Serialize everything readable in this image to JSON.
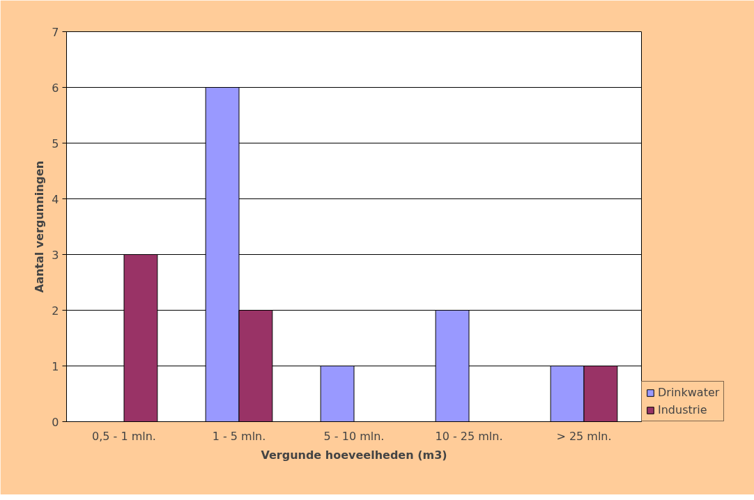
{
  "chart_data": {
    "type": "bar",
    "xlabel": "Vergunde hoeveelheden (m3)",
    "ylabel": "Aantal vergunningen",
    "categories": [
      "0,5 - 1 mln.",
      "1 - 5 mln.",
      "5 - 10 mln.",
      "10 - 25 mln.",
      "> 25 mln."
    ],
    "series": [
      {
        "name": "Drinkwater",
        "color": "#9999ff",
        "values": [
          0,
          6,
          1,
          2,
          1
        ]
      },
      {
        "name": "Industrie",
        "color": "#993366",
        "values": [
          3,
          2,
          0,
          0,
          1
        ]
      }
    ],
    "ylim": [
      0,
      7
    ],
    "yticks": [
      0,
      1,
      2,
      3,
      4,
      5,
      6,
      7
    ],
    "grid": "y",
    "legend": "right"
  }
}
